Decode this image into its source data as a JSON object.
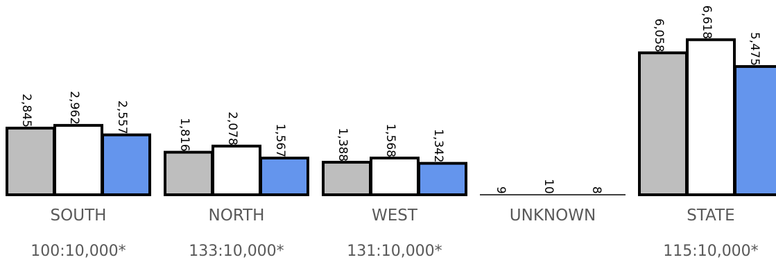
{
  "chart_data": {
    "type": "bar",
    "colors": [
      "#bebebe",
      "#ffffff",
      "#6495ed"
    ],
    "ylim": [
      0,
      7300
    ],
    "groups": [
      {
        "category": "SOUTH",
        "rate": "100:10,000*",
        "values": [
          2845,
          2962,
          2557
        ],
        "labels": [
          "2,845",
          "2,962",
          "2,557"
        ]
      },
      {
        "category": "NORTH",
        "rate": "133:10,000*",
        "values": [
          1816,
          2078,
          1567
        ],
        "labels": [
          "1,816",
          "2,078",
          "1,567"
        ]
      },
      {
        "category": "WEST",
        "rate": "131:10,000*",
        "values": [
          1388,
          1568,
          1342
        ],
        "labels": [
          "1,388",
          "1,568",
          "1,342"
        ]
      },
      {
        "category": "UNKNOWN",
        "rate": "",
        "values": [
          9,
          10,
          8
        ],
        "labels": [
          "9",
          "10",
          "8"
        ]
      },
      {
        "category": "STATE",
        "rate": "115:10,000*",
        "values": [
          6058,
          6618,
          5475
        ],
        "labels": [
          "6,058",
          "6,618",
          "5,475"
        ]
      }
    ]
  }
}
